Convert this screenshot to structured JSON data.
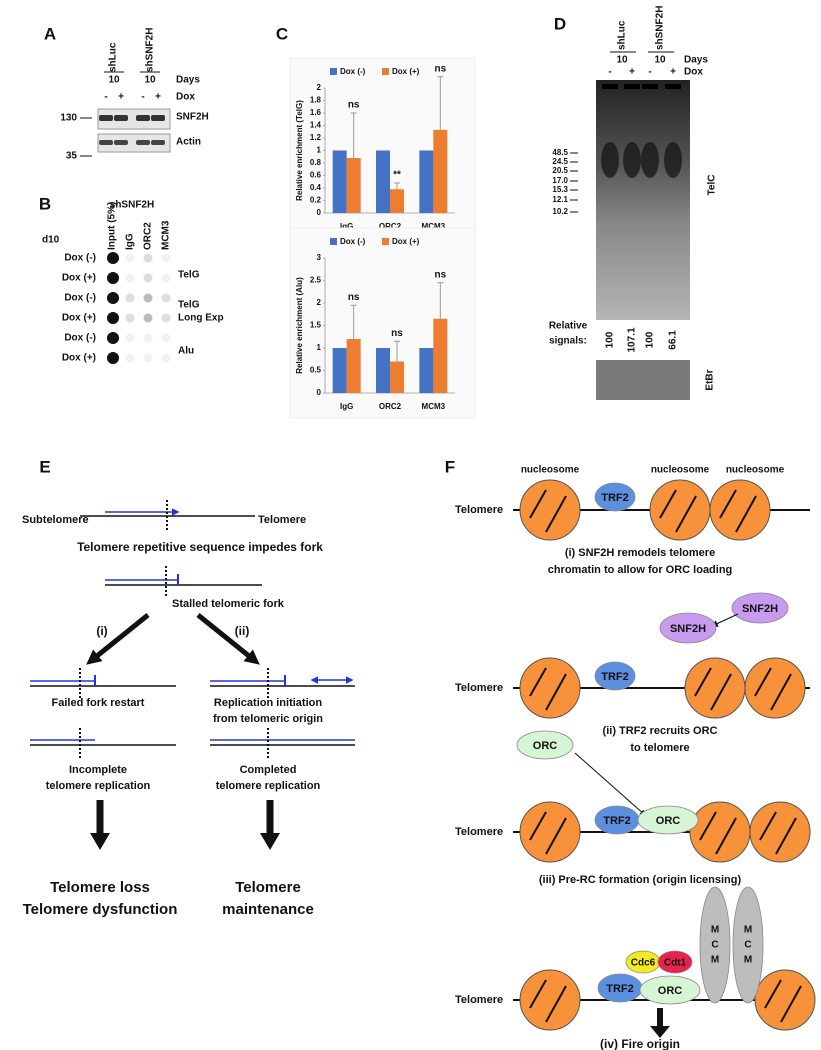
{
  "A": {
    "label": "A",
    "samples": [
      "shLuc",
      "shSNF2H"
    ],
    "days": [
      "10",
      "10"
    ],
    "days_label": "Days",
    "dox": [
      "-",
      "+",
      "-",
      "+"
    ],
    "dox_label": "Dox",
    "markers": [
      "130",
      "35"
    ],
    "bands": [
      "SNF2H",
      "Actin"
    ]
  },
  "B": {
    "label": "B",
    "title": "shSNF2H",
    "day": "d10",
    "columns": [
      "Input (5%)",
      "IgG",
      "ORC2",
      "MCM3"
    ],
    "rows": [
      "Dox (-)",
      "Dox (+)",
      "Dox (-)",
      "Dox (+)",
      "Dox (-)",
      "Dox (+)"
    ],
    "probes": [
      "TelG",
      "TelG",
      "Long Exp",
      "Alu"
    ]
  },
  "C": {
    "label": "C"
  },
  "chart_data": [
    {
      "type": "bar",
      "ylabel": "Relative enrichment (TelG)",
      "categories": [
        "IgG",
        "ORC2",
        "MCM3"
      ],
      "series": [
        {
          "name": "Dox (-)",
          "color": "#4472c4",
          "values": [
            1,
            1,
            1
          ]
        },
        {
          "name": "Dox (+)",
          "color": "#ed7d31",
          "values": [
            0.88,
            0.38,
            1.33
          ],
          "errors": [
            0.72,
            0.1,
            0.85
          ]
        }
      ],
      "annotations": [
        "ns",
        "**",
        "ns"
      ],
      "ylim": [
        0,
        2
      ],
      "yticks": [
        0,
        0.2,
        0.4,
        0.6,
        0.8,
        1,
        1.2,
        1.4,
        1.6,
        1.8,
        2
      ]
    },
    {
      "type": "bar",
      "ylabel": "Relative enrichment (Alu)",
      "categories": [
        "IgG",
        "ORC2",
        "MCM3"
      ],
      "series": [
        {
          "name": "Dox (-)",
          "color": "#4472c4",
          "values": [
            1,
            1,
            1
          ]
        },
        {
          "name": "Dox (+)",
          "color": "#ed7d31",
          "values": [
            1.2,
            0.7,
            1.65
          ],
          "errors": [
            0.75,
            0.45,
            0.8
          ]
        }
      ],
      "annotations": [
        "ns",
        "ns",
        "ns"
      ],
      "ylim": [
        0,
        3
      ],
      "yticks": [
        0,
        0.5,
        1,
        1.5,
        2,
        2.5,
        3
      ]
    }
  ],
  "D": {
    "label": "D",
    "samples": [
      "shLuc",
      "shSNF2H"
    ],
    "days": [
      "10",
      "10"
    ],
    "days_label": "Days",
    "dox": [
      "-",
      "+",
      "-",
      "+"
    ],
    "dox_label": "Dox",
    "markers": [
      "48.5",
      "24.5",
      "20.5",
      "17.0",
      "15.3",
      "12.1",
      "10.2"
    ],
    "probe": "TelC",
    "signals_label": [
      "Relative",
      "signals:"
    ],
    "signals": [
      "100",
      "107.1",
      "100",
      "66.1"
    ],
    "stain": "EtBr"
  },
  "E": {
    "label": "E",
    "subtelomere": "Subtelomere",
    "telomere": "Telomere",
    "step1": "Telomere repetitive sequence impedes fork",
    "step2": "Stalled telomeric fork",
    "paths": [
      "(i)",
      "(ii)"
    ],
    "left": [
      "Failed fork restart",
      "Incomplete",
      "telomere replication",
      "Telomere loss",
      "Telomere dysfunction"
    ],
    "right": [
      "Replication initiation",
      "from telomeric origin",
      "Completed",
      "telomere replication",
      "Telomere",
      "maintenance"
    ]
  },
  "F": {
    "label": "F",
    "telomere": [
      "Telomere",
      "Telomere",
      "Telomere",
      "Telomere"
    ],
    "nucleosome": [
      "nucleosome",
      "nucleosome",
      "nucleosome"
    ],
    "trf2": [
      "TRF2",
      "TRF2",
      "TRF2",
      "TRF2"
    ],
    "snf2h": [
      "SNF2H",
      "SNF2H"
    ],
    "orc": [
      "ORC",
      "ORC",
      "ORC"
    ],
    "cdc6": "Cdc6",
    "cdt1": "Cdt1",
    "mcm": [
      "M",
      "C",
      "M",
      "M",
      "C",
      "M"
    ],
    "steps": [
      "(i) SNF2H remodels telomere",
      "chromatin to allow for ORC loading",
      "(ii) TRF2 recruits ORC",
      "to telomere",
      "(iii) Pre-RC formation (origin licensing)",
      "(iv) Fire origin"
    ]
  }
}
